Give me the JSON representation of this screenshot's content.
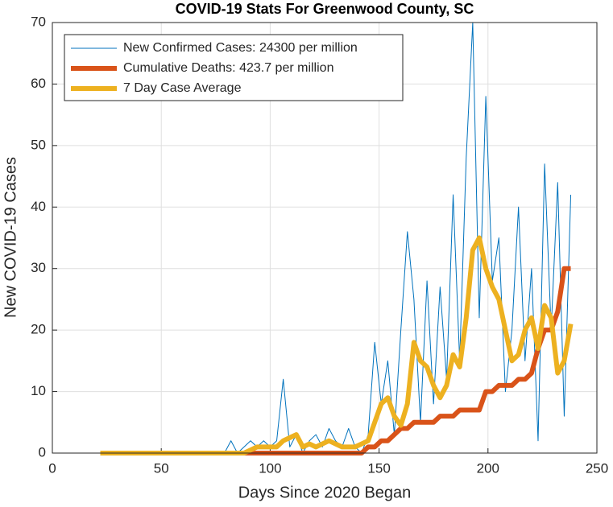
{
  "chart_data": {
    "type": "line",
    "title": "COVID-19 Stats For Greenwood County, SC",
    "x_label": "Days Since 2020 Began",
    "y_label": "New COVID-19 Cases",
    "x": [
      22,
      25,
      28,
      31,
      34,
      37,
      40,
      43,
      46,
      49,
      52,
      55,
      58,
      61,
      64,
      67,
      70,
      73,
      76,
      79,
      82,
      85,
      88,
      91,
      94,
      97,
      100,
      103,
      106,
      109,
      112,
      115,
      118,
      121,
      124,
      127,
      130,
      133,
      136,
      139,
      142,
      145,
      148,
      151,
      154,
      157,
      160,
      163,
      166,
      169,
      172,
      175,
      178,
      181,
      184,
      187,
      190,
      193,
      196,
      199,
      202,
      205,
      208,
      211,
      214,
      217,
      220,
      223,
      226,
      229,
      232,
      235,
      238
    ],
    "series": [
      {
        "name": "New Confirmed Cases: 24300 per million",
        "color": "#0072BD",
        "values": [
          0,
          0,
          0,
          0,
          0,
          0,
          0,
          0,
          0,
          0,
          0,
          0,
          0,
          0,
          0,
          0,
          0,
          0,
          0,
          0,
          2,
          0,
          1,
          2,
          1,
          2,
          1,
          2,
          12,
          1,
          3,
          0,
          2,
          3,
          1,
          4,
          2,
          1,
          4,
          1,
          0,
          3,
          18,
          8,
          15,
          3,
          20,
          36,
          25,
          5,
          28,
          8,
          27,
          12,
          42,
          15,
          48,
          70,
          22,
          58,
          28,
          35,
          10,
          20,
          40,
          15,
          30,
          2,
          47,
          20,
          44,
          6,
          42
        ]
      },
      {
        "name": "Cumulative Deaths: 423.7 per million",
        "color": "#D95319",
        "values": [
          0,
          0,
          0,
          0,
          0,
          0,
          0,
          0,
          0,
          0,
          0,
          0,
          0,
          0,
          0,
          0,
          0,
          0,
          0,
          0,
          0,
          0,
          0,
          0,
          0,
          0,
          0,
          0,
          0,
          0,
          0,
          0,
          0,
          0,
          0,
          0,
          0,
          0,
          0,
          0,
          0,
          1,
          1,
          2,
          2,
          3,
          4,
          4,
          5,
          5,
          5,
          5,
          6,
          6,
          6,
          7,
          7,
          7,
          7,
          10,
          10,
          11,
          11,
          11,
          12,
          12,
          13,
          17,
          20,
          20,
          23,
          30,
          30
        ]
      },
      {
        "name": "7 Day Case Average",
        "color": "#EDB120",
        "values": [
          0,
          0,
          0,
          0,
          0,
          0,
          0,
          0,
          0,
          0,
          0,
          0,
          0,
          0,
          0,
          0,
          0,
          0,
          0,
          0,
          0,
          0,
          0,
          0.5,
          1,
          1,
          1,
          1,
          2,
          2.5,
          3,
          1,
          1.5,
          1,
          1.5,
          2,
          1.5,
          1,
          1,
          1,
          1.5,
          2,
          5,
          8,
          9,
          6,
          4.5,
          8,
          18,
          15,
          14,
          11,
          9,
          11,
          16,
          14,
          22,
          33,
          35,
          30,
          27,
          25,
          20,
          15,
          16,
          20,
          22,
          17,
          24,
          22,
          13,
          15,
          21
        ]
      }
    ],
    "xlim": [
      0,
      250
    ],
    "xticks": [
      0,
      50,
      100,
      150,
      200,
      250
    ],
    "ylim": [
      0,
      70
    ],
    "yticks": [
      0,
      10,
      20,
      30,
      40,
      50,
      60,
      70
    ],
    "grid": true,
    "legend_position": "upper left"
  }
}
